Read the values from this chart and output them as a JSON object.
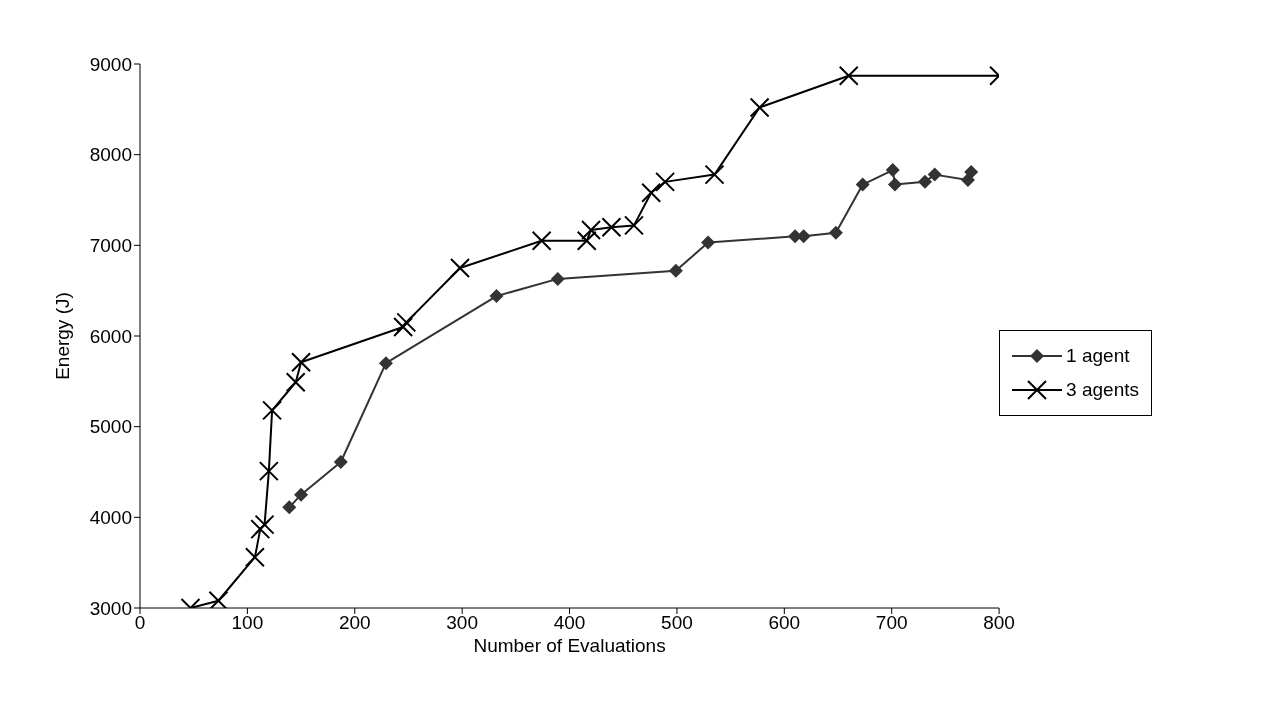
{
  "chart_data": {
    "type": "line",
    "xlabel": "Number of Evaluations",
    "ylabel": "Energy (J)",
    "xlim": [
      0,
      800
    ],
    "xticks": [
      0,
      100,
      200,
      300,
      400,
      500,
      600,
      700,
      800
    ],
    "ylim": [
      3000,
      9000
    ],
    "yticks": [
      3000,
      4000,
      5000,
      6000,
      7000,
      8000,
      9000
    ],
    "legend": "right",
    "series": [
      {
        "name": "1 agent",
        "color": "#333333",
        "marker": "diamond",
        "x": [
          139,
          150,
          187,
          229,
          332,
          389,
          499,
          529,
          610,
          618,
          648,
          673,
          701,
          703,
          731,
          740,
          771,
          774
        ],
        "values": [
          4110,
          4250,
          4610,
          5700,
          6440,
          6630,
          6720,
          7030,
          7100,
          7100,
          7140,
          7670,
          7830,
          7670,
          7700,
          7780,
          7720,
          7810
        ]
      },
      {
        "name": "3 agents",
        "color": "#000000",
        "marker": "cross",
        "x": [
          47,
          73,
          107,
          112,
          116,
          120,
          123,
          145,
          150,
          245,
          248,
          298,
          374,
          416,
          420,
          439,
          460,
          476,
          489,
          535,
          577,
          660,
          800
        ],
        "values": [
          3000,
          3080,
          3560,
          3870,
          3920,
          4510,
          5180,
          5490,
          5710,
          6100,
          6150,
          6750,
          7050,
          7050,
          7170,
          7200,
          7220,
          7580,
          7700,
          7780,
          8520,
          8870,
          8870
        ]
      }
    ]
  }
}
